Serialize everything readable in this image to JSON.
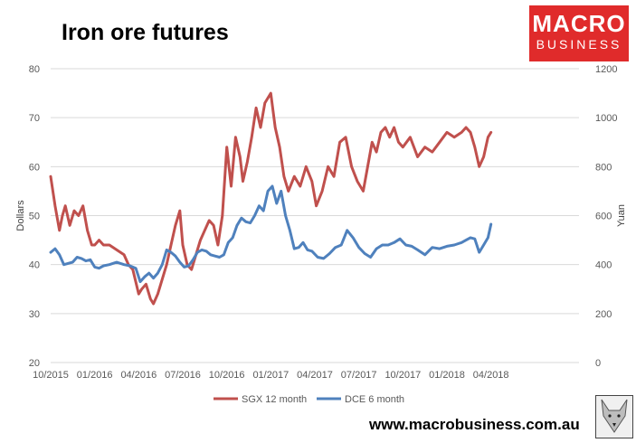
{
  "title": "Iron ore futures",
  "logo": {
    "line1": "MACRO",
    "line2": "BUSINESS"
  },
  "url": "www.macrobusiness.com.au",
  "colors": {
    "sgx": "#c0504d",
    "dce": "#4f81bd",
    "grid": "#d9d9d9",
    "brand": "#e02b2b"
  },
  "chart_data": {
    "type": "line",
    "title": "Iron ore futures",
    "xlabel": "",
    "ylabel": "Dollars",
    "y2label": "Yuan",
    "ylim": [
      20,
      80
    ],
    "y2lim": [
      0,
      1200
    ],
    "yticks": [
      20,
      30,
      40,
      50,
      60,
      70,
      80
    ],
    "y2ticks": [
      0,
      200,
      400,
      600,
      800,
      1000,
      1200
    ],
    "xlim": [
      0,
      36
    ],
    "xtick_labels": [
      "10/2015",
      "01/2016",
      "04/2016",
      "07/2016",
      "10/2016",
      "01/2017",
      "04/2017",
      "07/2017",
      "10/2017",
      "01/2018",
      "04/2018"
    ],
    "xtick_months": [
      0,
      3,
      6,
      9,
      12,
      15,
      18,
      21,
      24,
      27,
      30
    ],
    "legend": "bottom",
    "series": [
      {
        "name": "SGX 12 month",
        "axis": "left",
        "x": [
          0.0,
          0.3,
          0.6,
          0.8,
          1.0,
          1.3,
          1.6,
          1.9,
          2.2,
          2.5,
          2.8,
          3.0,
          3.3,
          3.6,
          4.0,
          4.5,
          5.0,
          5.3,
          5.6,
          6.0,
          6.2,
          6.5,
          6.8,
          7.0,
          7.3,
          7.6,
          7.9,
          8.2,
          8.5,
          8.8,
          9.0,
          9.3,
          9.6,
          9.9,
          10.2,
          10.5,
          10.8,
          11.1,
          11.4,
          11.7,
          12.0,
          12.3,
          12.6,
          12.9,
          13.1,
          13.4,
          13.7,
          14.0,
          14.3,
          14.6,
          15.0,
          15.3,
          15.6,
          15.9,
          16.2,
          16.6,
          17.0,
          17.4,
          17.8,
          18.1,
          18.5,
          18.9,
          19.3,
          19.7,
          20.1,
          20.5,
          20.9,
          21.3,
          21.6,
          21.9,
          22.2,
          22.5,
          22.8,
          23.1,
          23.4,
          23.7,
          24.0,
          24.5,
          25.0,
          25.5,
          26.0,
          26.5,
          27.0,
          27.5,
          28.0,
          28.3,
          28.6,
          28.9,
          29.2,
          29.5,
          29.8,
          30.0
        ],
        "values": [
          58,
          52,
          47,
          50,
          52,
          48,
          51,
          50,
          52,
          47,
          44,
          44,
          45,
          44,
          44,
          43,
          42,
          40,
          39,
          34,
          35,
          36,
          33,
          32,
          34,
          37,
          40,
          44,
          48,
          51,
          44,
          40,
          39,
          42,
          45,
          47,
          49,
          48,
          44,
          50,
          64,
          56,
          66,
          62,
          57,
          61,
          66,
          72,
          68,
          73,
          75,
          68,
          64,
          58,
          55,
          58,
          56,
          60,
          57,
          52,
          55,
          60,
          58,
          65,
          66,
          60,
          57,
          55,
          60,
          65,
          63,
          67,
          68,
          66,
          68,
          65,
          64,
          66,
          62,
          64,
          63,
          65,
          67,
          66,
          67,
          68,
          67,
          64,
          60,
          62,
          66,
          67
        ]
      },
      {
        "name": "DCE 6 month",
        "axis": "right",
        "x": [
          0.0,
          0.3,
          0.6,
          0.9,
          1.2,
          1.5,
          1.8,
          2.1,
          2.4,
          2.7,
          3.0,
          3.3,
          3.6,
          4.0,
          4.5,
          5.0,
          5.4,
          5.8,
          6.1,
          6.4,
          6.7,
          7.0,
          7.3,
          7.6,
          7.9,
          8.2,
          8.5,
          8.8,
          9.1,
          9.4,
          9.7,
          10.0,
          10.3,
          10.6,
          10.9,
          11.2,
          11.5,
          11.8,
          12.1,
          12.4,
          12.7,
          13.0,
          13.3,
          13.6,
          13.9,
          14.2,
          14.5,
          14.8,
          15.1,
          15.4,
          15.7,
          16.0,
          16.3,
          16.6,
          16.9,
          17.2,
          17.5,
          17.8,
          18.2,
          18.6,
          19.0,
          19.4,
          19.8,
          20.2,
          20.6,
          21.0,
          21.4,
          21.8,
          22.2,
          22.6,
          23.0,
          23.4,
          23.8,
          24.2,
          24.6,
          25.0,
          25.5,
          26.0,
          26.5,
          27.0,
          27.5,
          28.0,
          28.3,
          28.6,
          28.9,
          29.2,
          29.5,
          29.8,
          30.0
        ],
        "values": [
          450,
          465,
          440,
          400,
          405,
          410,
          430,
          425,
          415,
          420,
          390,
          385,
          395,
          400,
          410,
          400,
          395,
          385,
          330,
          350,
          365,
          345,
          365,
          400,
          460,
          450,
          435,
          410,
          390,
          395,
          420,
          450,
          460,
          455,
          440,
          435,
          430,
          440,
          490,
          510,
          560,
          590,
          575,
          570,
          600,
          640,
          620,
          700,
          720,
          650,
          700,
          600,
          540,
          465,
          470,
          490,
          460,
          455,
          430,
          425,
          445,
          470,
          480,
          540,
          510,
          470,
          445,
          430,
          465,
          480,
          480,
          490,
          505,
          480,
          475,
          460,
          440,
          470,
          465,
          475,
          480,
          490,
          500,
          510,
          505,
          450,
          480,
          510,
          565
        ]
      }
    ]
  }
}
